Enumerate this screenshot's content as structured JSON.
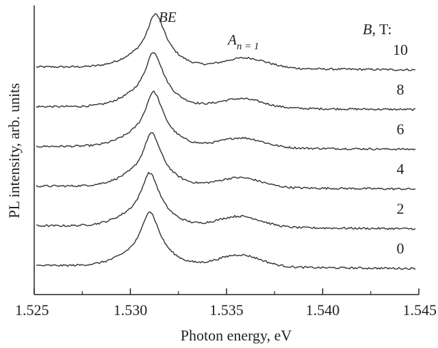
{
  "chart_data": {
    "type": "line",
    "title": "",
    "xlabel": "Photon energy, eV",
    "ylabel": "PL intensity, arb. units",
    "xlim": [
      1.525,
      1.545
    ],
    "x_ticks": [
      "1.525",
      "1.530",
      "1.535",
      "1.540",
      "1.545"
    ],
    "x_tick_values": [
      1.525,
      1.53,
      1.535,
      1.54,
      1.545
    ],
    "grid": false,
    "stacked_offset": true,
    "legend": {
      "title_italic": "B",
      "title_rest": ", T:"
    },
    "annotations": {
      "be_peak": "BE",
      "exciton_main": "A",
      "exciton_sub": "n = 1"
    },
    "series": [
      {
        "name": "10",
        "be_center": 1.5313,
        "be_amp": 1.0,
        "exc_center": 1.536,
        "exc_amp": 0.18
      },
      {
        "name": "8",
        "be_center": 1.5312,
        "be_amp": 1.03,
        "exc_center": 1.5358,
        "exc_amp": 0.16
      },
      {
        "name": "6",
        "be_center": 1.5312,
        "be_amp": 1.03,
        "exc_center": 1.5358,
        "exc_amp": 0.17
      },
      {
        "name": "4",
        "be_center": 1.5311,
        "be_amp": 1.0,
        "exc_center": 1.5357,
        "exc_amp": 0.17
      },
      {
        "name": "2",
        "be_center": 1.531,
        "be_amp": 1.0,
        "exc_center": 1.5357,
        "exc_amp": 0.19
      },
      {
        "name": "0",
        "be_center": 1.531,
        "be_amp": 1.02,
        "exc_center": 1.5357,
        "exc_amp": 0.21
      }
    ]
  }
}
